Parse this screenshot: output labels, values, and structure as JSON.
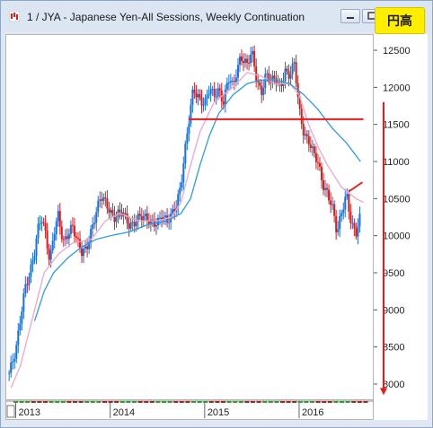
{
  "window": {
    "title": "1 / JYA - Japanese Yen-All Sessions, Weekly Continuation",
    "badge": "円高"
  },
  "colors": {
    "up_candle": "#1e6fd8",
    "down_candle": "#d81e1e",
    "ma_fast": "#f2a6c8",
    "ma_slow": "#2f9be6",
    "support_line": "#e8191e",
    "arrow": "#e8191e",
    "badge_bg": "#ffee00"
  },
  "chart_data": {
    "type": "candlestick",
    "y_ticks": [
      8000,
      8500,
      9000,
      9500,
      10000,
      10500,
      11000,
      11500,
      12000,
      12500
    ],
    "ylim": [
      7800,
      12600
    ],
    "x_ticks": [
      "2013",
      "2014",
      "2015",
      "2016"
    ],
    "x_range": [
      2012.9,
      2016.78
    ],
    "close_path": [
      [
        2012.93,
        8150
      ],
      [
        2013.0,
        8400
      ],
      [
        2013.05,
        8900
      ],
      [
        2013.1,
        9350
      ],
      [
        2013.15,
        9500
      ],
      [
        2013.2,
        9750
      ],
      [
        2013.24,
        10100
      ],
      [
        2013.27,
        10250
      ],
      [
        2013.32,
        10050
      ],
      [
        2013.36,
        9650
      ],
      [
        2013.4,
        10000
      ],
      [
        2013.45,
        10250
      ],
      [
        2013.5,
        9900
      ],
      [
        2013.55,
        10050
      ],
      [
        2013.6,
        10150
      ],
      [
        2013.65,
        9900
      ],
      [
        2013.7,
        9750
      ],
      [
        2013.75,
        9850
      ],
      [
        2013.8,
        10100
      ],
      [
        2013.85,
        10300
      ],
      [
        2013.9,
        10500
      ],
      [
        2013.95,
        10450
      ],
      [
        2014.0,
        10350
      ],
      [
        2014.05,
        10250
      ],
      [
        2014.1,
        10300
      ],
      [
        2014.15,
        10250
      ],
      [
        2014.2,
        10150
      ],
      [
        2014.3,
        10250
      ],
      [
        2014.4,
        10200
      ],
      [
        2014.5,
        10200
      ],
      [
        2014.55,
        10250
      ],
      [
        2014.6,
        10150
      ],
      [
        2014.65,
        10300
      ],
      [
        2014.7,
        10450
      ],
      [
        2014.75,
        10700
      ],
      [
        2014.8,
        11200
      ],
      [
        2014.85,
        11700
      ],
      [
        2014.88,
        12000
      ],
      [
        2014.93,
        11900
      ],
      [
        2015.0,
        11750
      ],
      [
        2015.05,
        11950
      ],
      [
        2015.1,
        11900
      ],
      [
        2015.15,
        12000
      ],
      [
        2015.2,
        11800
      ],
      [
        2015.25,
        12100
      ],
      [
        2015.3,
        12000
      ],
      [
        2015.38,
        12450
      ],
      [
        2015.45,
        12300
      ],
      [
        2015.5,
        12450
      ],
      [
        2015.55,
        12100
      ],
      [
        2015.6,
        11950
      ],
      [
        2015.65,
        12200
      ],
      [
        2015.7,
        12050
      ],
      [
        2015.75,
        12100
      ],
      [
        2015.8,
        12000
      ],
      [
        2015.85,
        12250
      ],
      [
        2015.9,
        12150
      ],
      [
        2015.95,
        12300
      ],
      [
        2016.0,
        11700
      ],
      [
        2016.05,
        11400
      ],
      [
        2016.1,
        11300
      ],
      [
        2016.15,
        11100
      ],
      [
        2016.2,
        10950
      ],
      [
        2016.25,
        10700
      ],
      [
        2016.3,
        10600
      ],
      [
        2016.35,
        10400
      ],
      [
        2016.4,
        10000
      ],
      [
        2016.45,
        10300
      ],
      [
        2016.5,
        10600
      ],
      [
        2016.55,
        10200
      ],
      [
        2016.6,
        10000
      ],
      [
        2016.65,
        10250
      ]
    ],
    "ma_fast": [
      [
        2012.95,
        7950
      ],
      [
        2013.05,
        8250
      ],
      [
        2013.2,
        9000
      ],
      [
        2013.3,
        9500
      ],
      [
        2013.45,
        9750
      ],
      [
        2013.6,
        9900
      ],
      [
        2013.8,
        9950
      ],
      [
        2013.95,
        10200
      ],
      [
        2014.1,
        10300
      ],
      [
        2014.3,
        10200
      ],
      [
        2014.5,
        10200
      ],
      [
        2014.65,
        10250
      ],
      [
        2014.75,
        10450
      ],
      [
        2014.85,
        10950
      ],
      [
        2014.95,
        11400
      ],
      [
        2015.1,
        11800
      ],
      [
        2015.3,
        12000
      ],
      [
        2015.45,
        12200
      ],
      [
        2015.6,
        12150
      ],
      [
        2015.75,
        12050
      ],
      [
        2015.9,
        12050
      ],
      [
        2016.0,
        11900
      ],
      [
        2016.1,
        11500
      ],
      [
        2016.2,
        11200
      ],
      [
        2016.3,
        10950
      ],
      [
        2016.45,
        10650
      ],
      [
        2016.6,
        10500
      ],
      [
        2016.68,
        10450
      ]
    ],
    "ma_slow": [
      [
        2013.2,
        8850
      ],
      [
        2013.3,
        9250
      ],
      [
        2013.4,
        9500
      ],
      [
        2013.55,
        9700
      ],
      [
        2013.7,
        9850
      ],
      [
        2013.85,
        9950
      ],
      [
        2014.0,
        10000
      ],
      [
        2014.2,
        10050
      ],
      [
        2014.4,
        10150
      ],
      [
        2014.6,
        10200
      ],
      [
        2014.75,
        10300
      ],
      [
        2014.85,
        10500
      ],
      [
        2014.95,
        10950
      ],
      [
        2015.05,
        11350
      ],
      [
        2015.15,
        11650
      ],
      [
        2015.3,
        11900
      ],
      [
        2015.45,
        12050
      ],
      [
        2015.6,
        12100
      ],
      [
        2015.75,
        12100
      ],
      [
        2015.9,
        12050
      ],
      [
        2016.05,
        11900
      ],
      [
        2016.2,
        11700
      ],
      [
        2016.35,
        11450
      ],
      [
        2016.5,
        11250
      ],
      [
        2016.65,
        11000
      ]
    ],
    "support_line": {
      "y": 11570,
      "x_from": 2014.83,
      "x_to": 2016.68
    },
    "trend_segment": [
      [
        2016.53,
        10600
      ],
      [
        2016.67,
        10720
      ]
    ],
    "down_arrow": {
      "from": 11800,
      "to": 7850
    }
  }
}
